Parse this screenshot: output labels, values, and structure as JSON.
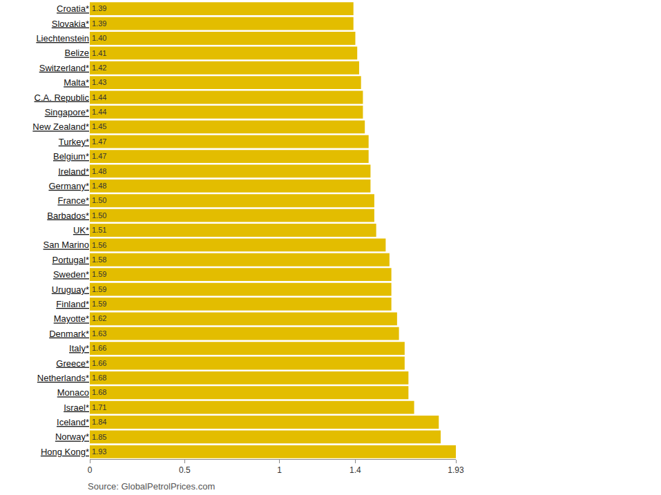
{
  "chart_data": {
    "type": "bar",
    "orientation": "horizontal",
    "categories": [
      "Croatia*",
      "Slovakia*",
      "Liechtenstein",
      "Belize",
      "Switzerland*",
      "Malta*",
      "C.A. Republic",
      "Singapore*",
      "New Zealand*",
      "Turkey*",
      "Belgium*",
      "Ireland*",
      "Germany*",
      "France*",
      "Barbados*",
      "UK*",
      "San Marino",
      "Portugal*",
      "Sweden*",
      "Uruguay*",
      "Finland*",
      "Mayotte*",
      "Denmark*",
      "Italy*",
      "Greece*",
      "Netherlands*",
      "Monaco",
      "Israel*",
      "Iceland*",
      "Norway*",
      "Hong Kong*"
    ],
    "values": [
      1.39,
      1.39,
      1.4,
      1.41,
      1.42,
      1.43,
      1.44,
      1.44,
      1.45,
      1.47,
      1.47,
      1.48,
      1.48,
      1.5,
      1.5,
      1.51,
      1.56,
      1.58,
      1.59,
      1.59,
      1.59,
      1.62,
      1.63,
      1.66,
      1.66,
      1.68,
      1.68,
      1.71,
      1.84,
      1.85,
      1.93
    ],
    "value_labels": [
      "1.39",
      "1.39",
      "1.40",
      "1.41",
      "1.42",
      "1.43",
      "1.44",
      "1.44",
      "1.45",
      "1.47",
      "1.47",
      "1.48",
      "1.48",
      "1.50",
      "1.50",
      "1.51",
      "1.56",
      "1.58",
      "1.59",
      "1.59",
      "1.59",
      "1.62",
      "1.63",
      "1.66",
      "1.66",
      "1.68",
      "1.68",
      "1.71",
      "1.84",
      "1.85",
      "1.93"
    ],
    "color": "#e3bd00",
    "data_labels": true,
    "grid": false,
    "xlim": [
      0,
      1.93
    ],
    "xticks": [
      0,
      0.5,
      1,
      1.4,
      1.93
    ],
    "annotations": [
      "Source: GlobalPetrolPrices.com"
    ]
  }
}
